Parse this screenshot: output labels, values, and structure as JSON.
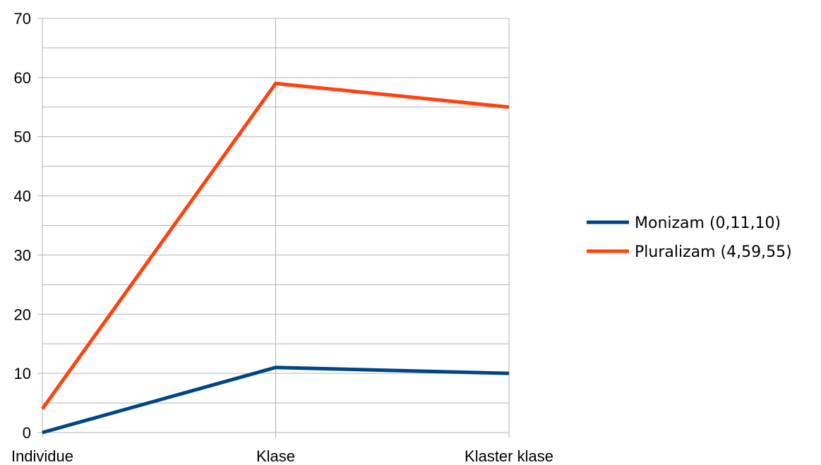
{
  "chart_data": {
    "type": "line",
    "categories": [
      "Individue",
      "Klase",
      "Klaster klase"
    ],
    "series": [
      {
        "name": "Monizam (0,11,10)",
        "values": [
          0,
          11,
          10
        ],
        "color": "#004586"
      },
      {
        "name": "Pluralizam (4,59,55)",
        "values": [
          4,
          59,
          55
        ],
        "color": "#ff420e"
      }
    ],
    "ylim": [
      0,
      70
    ],
    "yticks": [
      0,
      10,
      20,
      30,
      40,
      50,
      60,
      70
    ],
    "minor_grid_step": 5,
    "grid": true,
    "legend_position": "right",
    "title": "",
    "xlabel": "",
    "ylabel": ""
  }
}
